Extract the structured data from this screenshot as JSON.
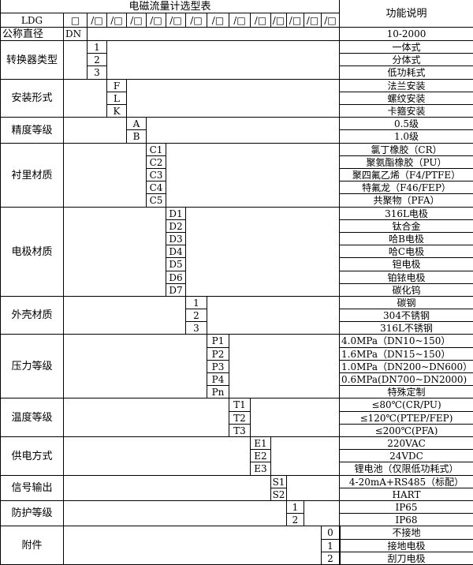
{
  "title": "电磁流量计选型表",
  "function_header": "功能说明",
  "model_prefix": "LDG",
  "model_slots": [
    "□",
    "/□",
    "/□",
    "/□",
    "/□",
    "/□",
    "/□",
    "/□",
    "/□",
    "/□",
    "/□",
    "/□",
    "/□",
    "/□"
  ],
  "nominal": {
    "label": "公称直径",
    "code": "DN",
    "desc": "10-2000"
  },
  "sections": [
    {
      "label": "转换器类型",
      "col": 2,
      "options": [
        {
          "code": "1",
          "desc": "一体式"
        },
        {
          "code": "2",
          "desc": "分体式"
        },
        {
          "code": "3",
          "desc": "低功耗式"
        }
      ]
    },
    {
      "label": "安装形式",
      "col": 3,
      "options": [
        {
          "code": "F",
          "desc": "法兰安装"
        },
        {
          "code": "L",
          "desc": "螺纹安装"
        },
        {
          "code": "K",
          "desc": "卡箍安装"
        }
      ]
    },
    {
      "label": "精度等级",
      "col": 4,
      "options": [
        {
          "code": "A",
          "desc": "0.5级"
        },
        {
          "code": "B",
          "desc": "1.0级"
        }
      ]
    },
    {
      "label": "衬里材质",
      "col": 5,
      "options": [
        {
          "code": "C1",
          "desc": "氯丁橡胶（CR）"
        },
        {
          "code": "C2",
          "desc": "聚氨酯橡胶（PU）"
        },
        {
          "code": "C3",
          "desc": "聚四氟乙烯（F4/PTFE）"
        },
        {
          "code": "C4",
          "desc": "特氟龙（F46/FEP）"
        },
        {
          "code": "C5",
          "desc": "共聚物（PFA）"
        }
      ]
    },
    {
      "label": "电极材质",
      "col": 6,
      "options": [
        {
          "code": "D1",
          "desc": "316L电极"
        },
        {
          "code": "D2",
          "desc": "钛合金"
        },
        {
          "code": "D3",
          "desc": "哈B电极"
        },
        {
          "code": "D4",
          "desc": "哈C电极"
        },
        {
          "code": "D5",
          "desc": "钽电极"
        },
        {
          "code": "D6",
          "desc": "铂铱电极"
        },
        {
          "code": "D7",
          "desc": "碳化钨"
        }
      ]
    },
    {
      "label": "外壳材质",
      "col": 7,
      "options": [
        {
          "code": "1",
          "desc": "碳钢"
        },
        {
          "code": "2",
          "desc": "304不锈钢"
        },
        {
          "code": "3",
          "desc": "316L不锈钢"
        }
      ]
    },
    {
      "label": "压力等级",
      "col": 8,
      "options": [
        {
          "code": "P1",
          "desc": "4.0MPa（DN10~150）",
          "align": "left"
        },
        {
          "code": "P2",
          "desc": "1.6MPa（DN15~150）",
          "align": "left"
        },
        {
          "code": "P3",
          "desc": "1.0MPa（DN200~DN600）",
          "align": "left"
        },
        {
          "code": "P4",
          "desc": "0.6MPa(DN700~DN2000)",
          "align": "left"
        },
        {
          "code": "Pn",
          "desc": "特殊定制"
        }
      ]
    },
    {
      "label": "温度等级",
      "col": 9,
      "options": [
        {
          "code": "T1",
          "desc": "≤80℃(CR/PU)"
        },
        {
          "code": "T2",
          "desc": "≤120℃(PTEP/FEP)"
        },
        {
          "code": "T3",
          "desc": "≤200℃(PFA)"
        }
      ]
    },
    {
      "label": "供电方式",
      "col": 10,
      "options": [
        {
          "code": "E1",
          "desc": "220VAC"
        },
        {
          "code": "E2",
          "desc": "24VDC"
        },
        {
          "code": "E3",
          "desc": "锂电池（仅限低功耗式）"
        }
      ]
    },
    {
      "label": "信号输出",
      "col": 11,
      "options": [
        {
          "code": "S1",
          "desc": "4-20mA+RS485（标配）"
        },
        {
          "code": "S2",
          "desc": "HART"
        }
      ]
    },
    {
      "label": "防护等级",
      "col": 12,
      "options": [
        {
          "code": "1",
          "desc": "IP65"
        },
        {
          "code": "2",
          "desc": "IP68"
        }
      ]
    },
    {
      "label": "附件",
      "col": 14,
      "options": [
        {
          "code": "0",
          "desc": "不接地"
        },
        {
          "code": "1",
          "desc": "接地电极"
        },
        {
          "code": "2",
          "desc": "刮刀电极"
        }
      ]
    }
  ]
}
